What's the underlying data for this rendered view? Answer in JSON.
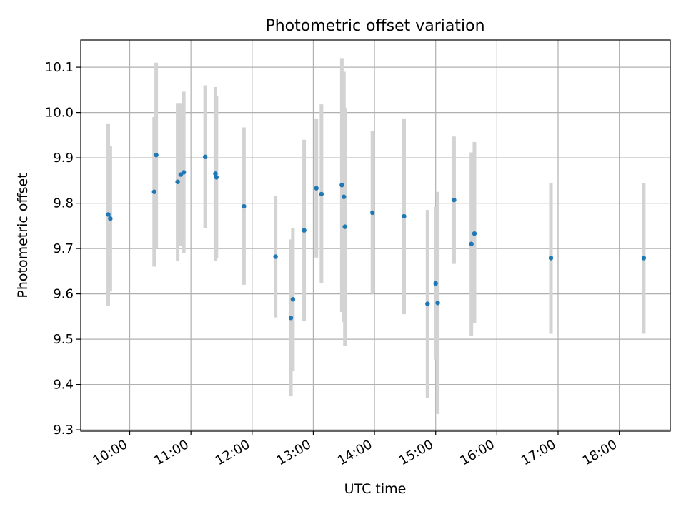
{
  "chart_data": {
    "type": "scatter",
    "title": "Photometric offset variation",
    "xlabel": "UTC time",
    "ylabel": "Photometric offset",
    "xlim": [
      "09:12",
      "18:50"
    ],
    "ylim": [
      9.297,
      10.16
    ],
    "x_ticks": [
      "10:00",
      "11:00",
      "12:00",
      "13:00",
      "14:00",
      "15:00",
      "16:00",
      "17:00",
      "18:00"
    ],
    "y_ticks": [
      "9.3",
      "9.4",
      "9.5",
      "9.6",
      "9.7",
      "9.8",
      "9.9",
      "10.0",
      "10.1"
    ],
    "grid": true,
    "legend": "none",
    "colors": {
      "points": "#1f77b4",
      "error_bars": "#d3d3d3",
      "grid": "#b0b0b0"
    },
    "points": [
      {
        "x": "09:39",
        "y": 9.775,
        "lo": 9.573,
        "hi": 9.976
      },
      {
        "x": "09:41",
        "y": 9.766,
        "lo": 9.605,
        "hi": 9.927
      },
      {
        "x": "10:24",
        "y": 9.825,
        "lo": 9.66,
        "hi": 9.99
      },
      {
        "x": "10:26",
        "y": 9.906,
        "lo": 9.7,
        "hi": 10.11
      },
      {
        "x": "10:47",
        "y": 9.847,
        "lo": 9.673,
        "hi": 10.021
      },
      {
        "x": "10:50",
        "y": 9.863,
        "lo": 9.705,
        "hi": 10.021
      },
      {
        "x": "10:53",
        "y": 9.868,
        "lo": 9.69,
        "hi": 10.046
      },
      {
        "x": "11:14",
        "y": 9.902,
        "lo": 9.745,
        "hi": 10.06
      },
      {
        "x": "11:24",
        "y": 9.865,
        "lo": 9.673,
        "hi": 10.056
      },
      {
        "x": "11:25",
        "y": 9.857,
        "lo": 9.678,
        "hi": 10.036
      },
      {
        "x": "11:52",
        "y": 9.793,
        "lo": 9.62,
        "hi": 9.967
      },
      {
        "x": "12:23",
        "y": 9.682,
        "lo": 9.548,
        "hi": 9.816
      },
      {
        "x": "12:38",
        "y": 9.547,
        "lo": 9.374,
        "hi": 9.72
      },
      {
        "x": "12:40",
        "y": 9.588,
        "lo": 9.43,
        "hi": 9.745
      },
      {
        "x": "12:51",
        "y": 9.74,
        "lo": 9.54,
        "hi": 9.94
      },
      {
        "x": "13:03",
        "y": 9.833,
        "lo": 9.68,
        "hi": 9.987
      },
      {
        "x": "13:08",
        "y": 9.82,
        "lo": 9.623,
        "hi": 10.018
      },
      {
        "x": "13:28",
        "y": 9.84,
        "lo": 9.56,
        "hi": 10.12
      },
      {
        "x": "13:30",
        "y": 9.814,
        "lo": 9.538,
        "hi": 10.09
      },
      {
        "x": "13:31",
        "y": 9.748,
        "lo": 9.486,
        "hi": 10.01
      },
      {
        "x": "13:58",
        "y": 9.779,
        "lo": 9.6,
        "hi": 9.96
      },
      {
        "x": "14:29",
        "y": 9.771,
        "lo": 9.555,
        "hi": 9.987
      },
      {
        "x": "14:52",
        "y": 9.578,
        "lo": 9.37,
        "hi": 9.785
      },
      {
        "x": "15:00",
        "y": 9.623,
        "lo": 9.455,
        "hi": 9.792
      },
      {
        "x": "15:02",
        "y": 9.58,
        "lo": 9.335,
        "hi": 9.825
      },
      {
        "x": "15:18",
        "y": 9.807,
        "lo": 9.666,
        "hi": 9.947
      },
      {
        "x": "15:35",
        "y": 9.71,
        "lo": 9.508,
        "hi": 9.912
      },
      {
        "x": "15:38",
        "y": 9.733,
        "lo": 9.535,
        "hi": 9.935
      },
      {
        "x": "16:53",
        "y": 9.679,
        "lo": 9.512,
        "hi": 9.845
      },
      {
        "x": "18:24",
        "y": 9.679,
        "lo": 9.512,
        "hi": 9.845
      }
    ]
  }
}
